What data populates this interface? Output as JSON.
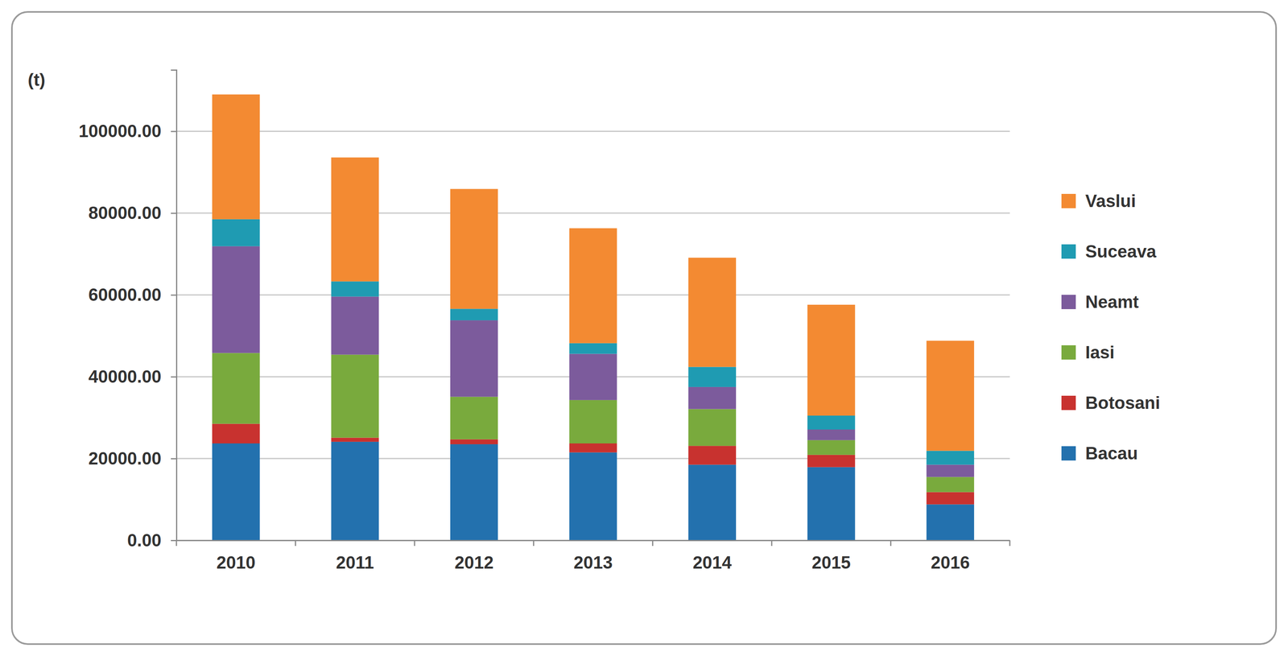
{
  "chart_data": {
    "type": "bar",
    "stacked": true,
    "grid": true,
    "legend": "right",
    "y_label": "(t)",
    "categories": [
      "2010",
      "2011",
      "2012",
      "2013",
      "2014",
      "2015",
      "2016"
    ],
    "series": [
      {
        "name": "Bacau",
        "color": "#2371ae",
        "values": [
          23700,
          24100,
          23500,
          21500,
          18500,
          17900,
          8800
        ]
      },
      {
        "name": "Botosani",
        "color": "#c8322f",
        "values": [
          4800,
          1000,
          1200,
          2200,
          4600,
          3000,
          3000
        ]
      },
      {
        "name": "Iasi",
        "color": "#79aa3d",
        "values": [
          17300,
          20300,
          10400,
          10600,
          9000,
          3600,
          3700
        ]
      },
      {
        "name": "Neamt",
        "color": "#7c5b9c",
        "values": [
          26100,
          14200,
          18700,
          11300,
          5400,
          2600,
          3000
        ]
      },
      {
        "name": "Suceava",
        "color": "#1f9bb2",
        "values": [
          6600,
          3700,
          2800,
          2600,
          4900,
          3400,
          3400
        ]
      },
      {
        "name": "Vaslui",
        "color": "#f38a32",
        "values": [
          30500,
          30300,
          29300,
          28100,
          26700,
          27100,
          26900
        ]
      }
    ],
    "ylim": [
      0,
      115000
    ],
    "yticks": [
      {
        "value": 0,
        "label": "0.00"
      },
      {
        "value": 20000,
        "label": "20000.00"
      },
      {
        "value": 40000,
        "label": "40000.00"
      },
      {
        "value": 60000,
        "label": "60000.00"
      },
      {
        "value": 80000,
        "label": "80000.00"
      },
      {
        "value": 100000,
        "label": "100000.00"
      }
    ]
  }
}
